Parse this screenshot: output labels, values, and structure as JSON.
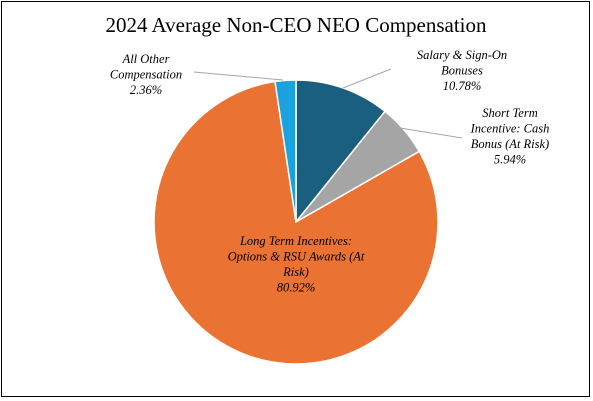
{
  "chart_data": {
    "type": "pie",
    "title": "2024 Average Non-CEO NEO Compensation",
    "slices": [
      {
        "label_lines": [
          "Salary & Sign-On",
          "Bonuses"
        ],
        "percent_text": "10.78%",
        "value": 10.78,
        "color": "#1a5e80"
      },
      {
        "label_lines": [
          "Short Term",
          "Incentive: Cash",
          "Bonus (At Risk)"
        ],
        "percent_text": "5.94%",
        "value": 5.94,
        "color": "#a5a5a5"
      },
      {
        "label_lines": [
          "Long Term Incentives:",
          "Options & RSU Awards (At",
          "Risk)"
        ],
        "percent_text": "80.92%",
        "value": 80.92,
        "color": "#ea7233"
      },
      {
        "label_lines": [
          "All Other",
          "Compensation"
        ],
        "percent_text": "2.36%",
        "value": 2.36,
        "color": "#1ba1dc"
      }
    ]
  }
}
